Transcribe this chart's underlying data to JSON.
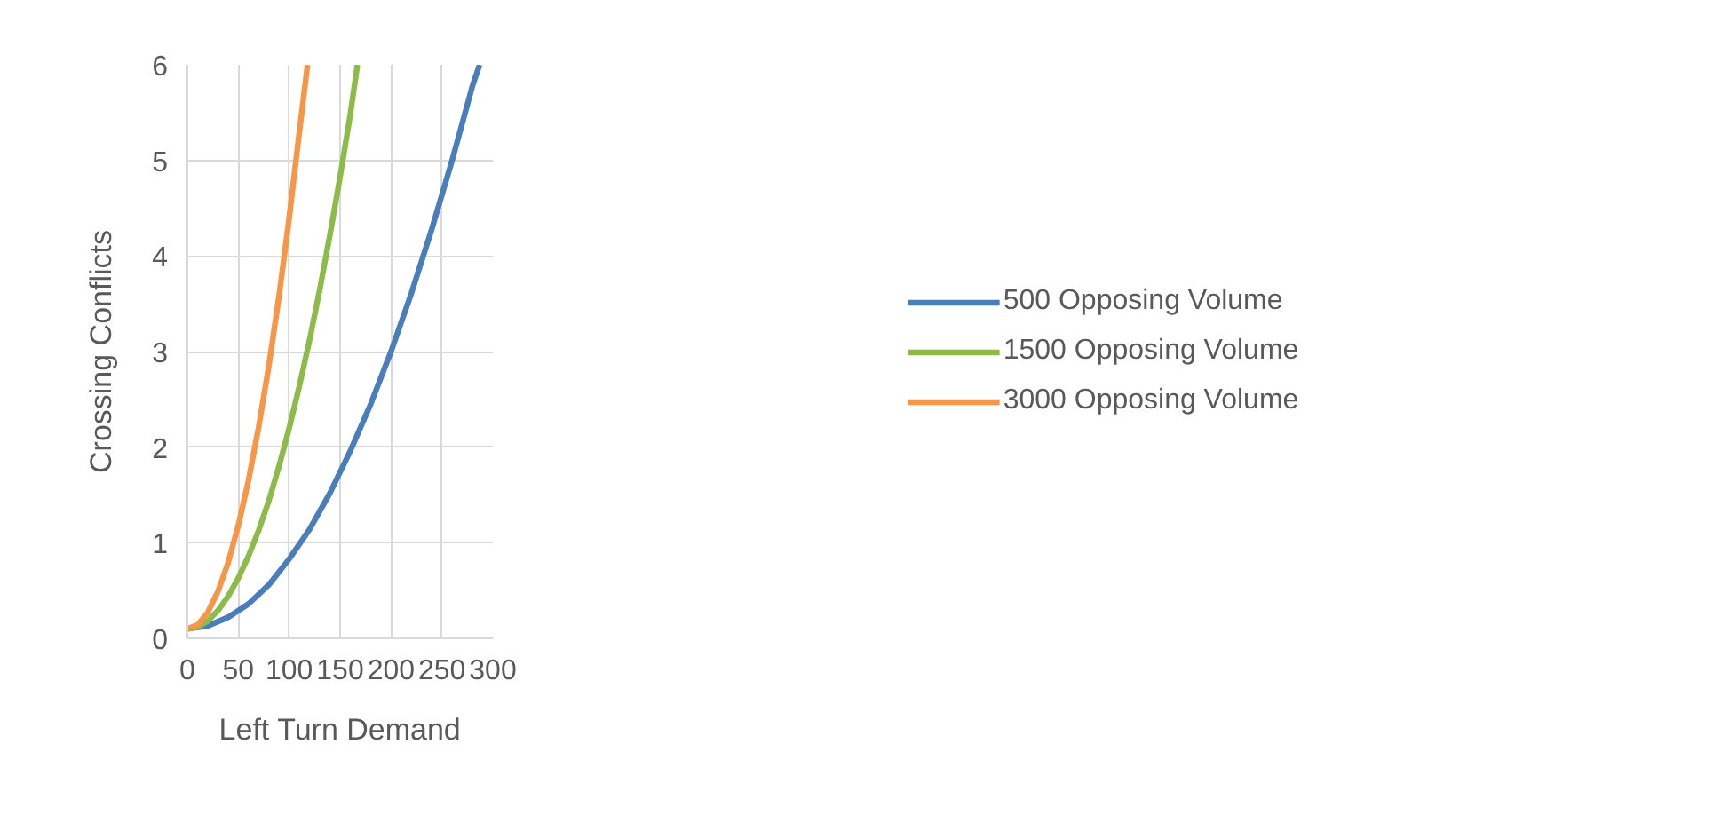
{
  "chart_data": {
    "type": "line",
    "xlabel": "Left Turn Demand",
    "ylabel": "Crossing Conflicts",
    "xlim": [
      0,
      300
    ],
    "xticks": [
      0,
      50,
      100,
      150,
      200,
      250,
      300
    ],
    "ylim": [
      0,
      6
    ],
    "yticks": [
      0,
      1,
      2,
      3,
      4,
      5,
      6
    ],
    "grid": true,
    "legend": "right",
    "marker": "none",
    "line_style": "solid",
    "series": [
      {
        "name": "500 Opposing Volume",
        "color": "#4a7ebb",
        "x": [
          0,
          20,
          40,
          60,
          80,
          100,
          120,
          140,
          160,
          180,
          200,
          220,
          240,
          260,
          280,
          287
        ],
        "values": [
          0.1,
          0.13,
          0.22,
          0.36,
          0.56,
          0.83,
          1.14,
          1.52,
          1.96,
          2.45,
          3.0,
          3.61,
          4.28,
          5.0,
          5.78,
          6.0
        ]
      },
      {
        "name": "1500 Opposing Volume",
        "color": "#8cbb4a",
        "x": [
          0,
          10,
          20,
          30,
          40,
          50,
          60,
          70,
          80,
          90,
          100,
          110,
          120,
          130,
          140,
          150,
          160,
          167
        ],
        "values": [
          0.1,
          0.12,
          0.18,
          0.29,
          0.44,
          0.63,
          0.86,
          1.13,
          1.44,
          1.8,
          2.2,
          2.64,
          3.12,
          3.65,
          4.22,
          4.83,
          5.48,
          6.0
        ]
      },
      {
        "name": "3000 Opposing Volume",
        "color": "#f79646",
        "x": [
          0,
          10,
          20,
          30,
          40,
          50,
          60,
          70,
          80,
          90,
          100,
          110,
          118
        ],
        "values": [
          0.1,
          0.14,
          0.27,
          0.49,
          0.79,
          1.18,
          1.65,
          2.21,
          2.85,
          3.58,
          4.4,
          5.3,
          6.0
        ]
      }
    ]
  }
}
